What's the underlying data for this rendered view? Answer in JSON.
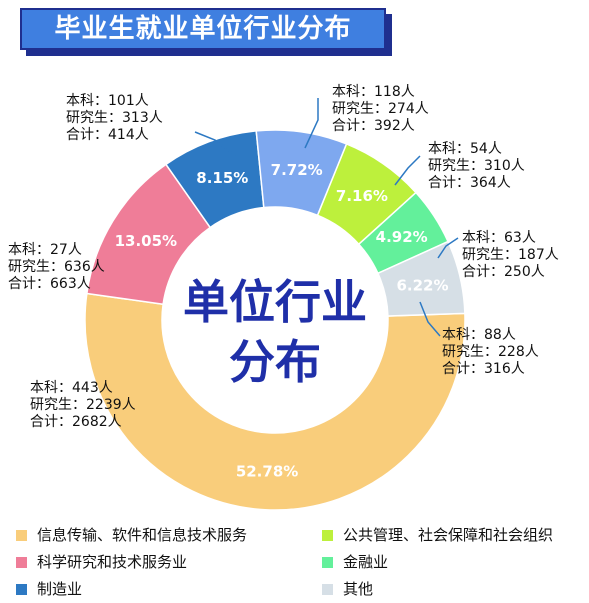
{
  "title": "毕业生就业单位行业分布",
  "center_text": [
    "单位行业",
    "分布"
  ],
  "chart_data": {
    "type": "pie",
    "donut": true,
    "title": "毕业生就业单位行业分布",
    "slices": [
      {
        "name": "信息传输、软件和信息技术服务",
        "percent": "52.78%",
        "value": 52.78,
        "color": "#f9cd7b",
        "details": [
          "本科：443人",
          "研究生：2239人",
          "合计：2682人"
        ]
      },
      {
        "name": "科学研究和技术服务业",
        "percent": "13.05%",
        "value": 13.05,
        "color": "#ef7d98",
        "details": [
          "本科：27人",
          "研究生：636人",
          "合计：663人"
        ]
      },
      {
        "name": "制造业",
        "percent": "8.15%",
        "value": 8.15,
        "color": "#2d79c3",
        "details": [
          "本科：101人",
          "研究生：313人",
          "合计：414人"
        ]
      },
      {
        "name": "",
        "percent": "7.72%",
        "value": 7.72,
        "color": "#7ea8ef",
        "details": [
          "本科：118人",
          "研究生：274人",
          "合计：392人"
        ]
      },
      {
        "name": "公共管理、社会保障和社会组织",
        "percent": "7.16%",
        "value": 7.16,
        "color": "#bdf03c",
        "details": [
          "本科：54人",
          "研究生：310人",
          "合计：364人"
        ]
      },
      {
        "name": "金融业",
        "percent": "4.92%",
        "value": 4.92,
        "color": "#63f09b",
        "details": [
          "本科：63人",
          "研究生：187人",
          "合计：250人"
        ]
      },
      {
        "name": "其他",
        "percent": "6.22%",
        "value": 6.22,
        "color": "#d6dfe6",
        "details": [
          "本科：88人",
          "研究生：228人",
          "合计：316人"
        ]
      }
    ]
  },
  "legend": [
    {
      "label": "信息传输、软件和信息技术服务",
      "color": "#f9cd7b"
    },
    {
      "label": "公共管理、社会保障和社会组织",
      "color": "#bdf03c"
    },
    {
      "label": "科学研究和技术服务业",
      "color": "#ef7d98"
    },
    {
      "label": "金融业",
      "color": "#63f09b"
    },
    {
      "label": "制造业",
      "color": "#2d79c3"
    },
    {
      "label": "其他",
      "color": "#d6dfe6"
    }
  ]
}
